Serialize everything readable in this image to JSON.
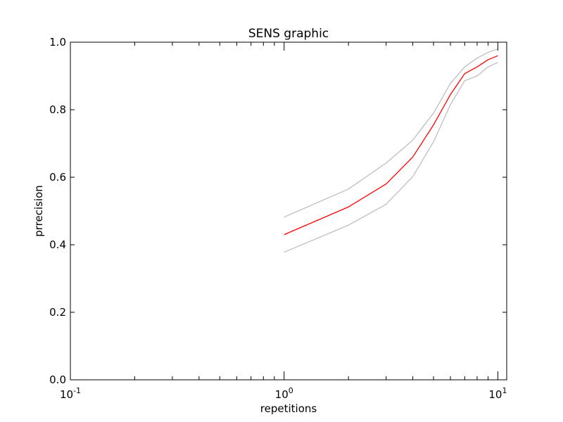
{
  "chart_data": {
    "type": "line",
    "title": "SENS graphic",
    "xlabel": "repetitions",
    "ylabel": "prrecision",
    "xscale": "log",
    "xlim": [
      0.1,
      11
    ],
    "ylim": [
      0.0,
      1.0
    ],
    "grid": false,
    "legend": "none",
    "x_ticks": [
      {
        "value": 0.1,
        "base": "10",
        "exp": "-1"
      },
      {
        "value": 1,
        "base": "10",
        "exp": "0"
      },
      {
        "value": 10,
        "base": "10",
        "exp": "1"
      }
    ],
    "y_ticks": [
      "0.0",
      "0.2",
      "0.4",
      "0.6",
      "0.8",
      "1.0"
    ],
    "x": [
      1,
      2,
      3,
      4,
      5,
      6,
      7,
      8,
      9,
      10
    ],
    "series": [
      {
        "color": "#ff0000",
        "values": [
          0.43,
          0.512,
          0.58,
          0.66,
          0.755,
          0.845,
          0.907,
          0.927,
          0.948,
          0.96
        ]
      },
      {
        "color": "#bfbfbf",
        "values": [
          0.482,
          0.565,
          0.642,
          0.71,
          0.79,
          0.878,
          0.927,
          0.953,
          0.97,
          0.98
        ]
      },
      {
        "color": "#bfbfbf",
        "values": [
          0.378,
          0.458,
          0.52,
          0.602,
          0.705,
          0.815,
          0.886,
          0.9,
          0.927,
          0.94
        ]
      }
    ]
  }
}
